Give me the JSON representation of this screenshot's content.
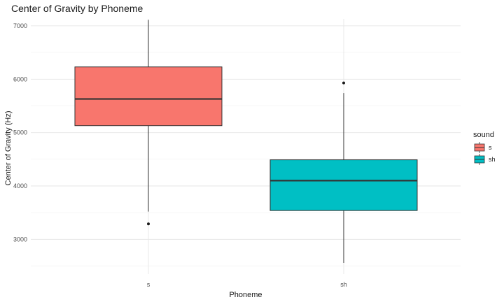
{
  "chart_data": {
    "type": "boxplot",
    "title": "Center of Gravity by Phoneme",
    "xlabel": "Phoneme",
    "ylabel": "Center of Gravity (Hz)",
    "ylim": [
      2350,
      7130
    ],
    "y_ticks": [
      3000,
      4000,
      5000,
      6000,
      7000
    ],
    "y_minor_ticks": [
      2500,
      3500,
      4500,
      5500,
      6500
    ],
    "categories": [
      "s",
      "sh"
    ],
    "grid": true,
    "legend": {
      "title": "sound",
      "placement": "right",
      "entries": [
        {
          "label": "s",
          "color": "#F8766D"
        },
        {
          "label": "sh",
          "color": "#00BFC4"
        }
      ]
    },
    "boxes": [
      {
        "category": "s",
        "color": "#F8766D",
        "whisker_low": 3520,
        "q1": 5130,
        "median": 5630,
        "q3": 6230,
        "whisker_high": 7110,
        "outliers": [
          3290
        ]
      },
      {
        "category": "sh",
        "color": "#00BFC4",
        "whisker_low": 2560,
        "q1": 3540,
        "median": 4100,
        "q3": 4490,
        "whisker_high": 5740,
        "outliers": [
          5930
        ]
      }
    ]
  }
}
